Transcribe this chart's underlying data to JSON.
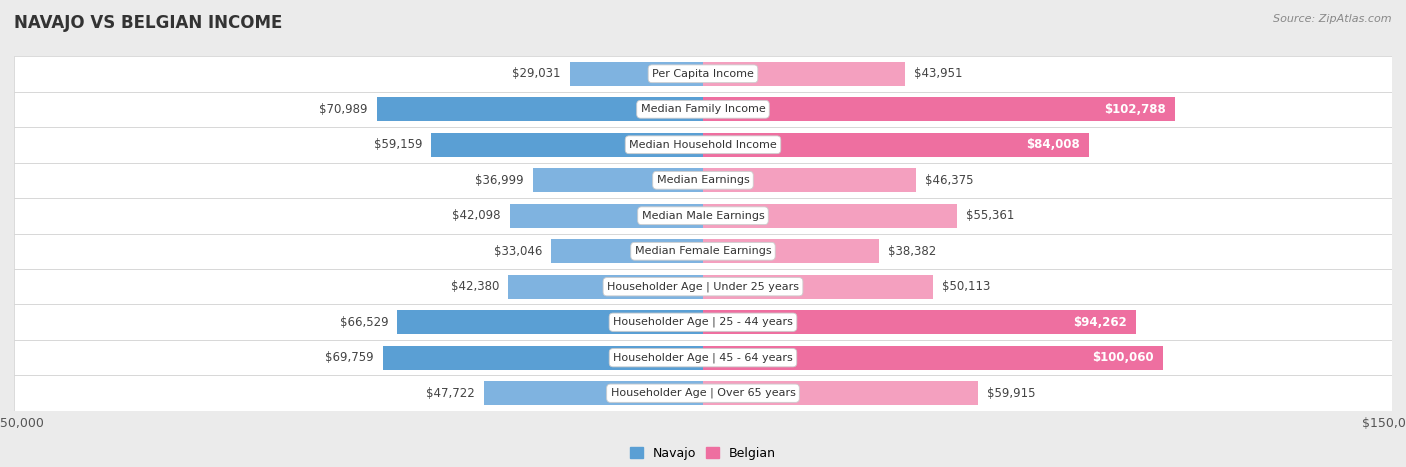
{
  "title": "NAVAJO VS BELGIAN INCOME",
  "source": "Source: ZipAtlas.com",
  "categories": [
    "Per Capita Income",
    "Median Family Income",
    "Median Household Income",
    "Median Earnings",
    "Median Male Earnings",
    "Median Female Earnings",
    "Householder Age | Under 25 years",
    "Householder Age | 25 - 44 years",
    "Householder Age | 45 - 64 years",
    "Householder Age | Over 65 years"
  ],
  "navajo_values": [
    29031,
    70989,
    59159,
    36999,
    42098,
    33046,
    42380,
    66529,
    69759,
    47722
  ],
  "belgian_values": [
    43951,
    102788,
    84008,
    46375,
    55361,
    38382,
    50113,
    94262,
    100060,
    59915
  ],
  "navajo_color": "#7fb3e0",
  "belgian_color": "#f4a0bf",
  "navajo_color_dark": "#5a9fd4",
  "belgian_color_dark": "#ee6fa0",
  "dark_threshold_nav": 59000,
  "dark_threshold_bel": 75000,
  "max_value": 150000,
  "bg_color": "#ebebeb",
  "row_light": "#f9f9f9",
  "row_dark": "#f0f0f0",
  "label_fontsize": 8.5,
  "cat_fontsize": 8.0,
  "title_fontsize": 12,
  "source_fontsize": 8
}
